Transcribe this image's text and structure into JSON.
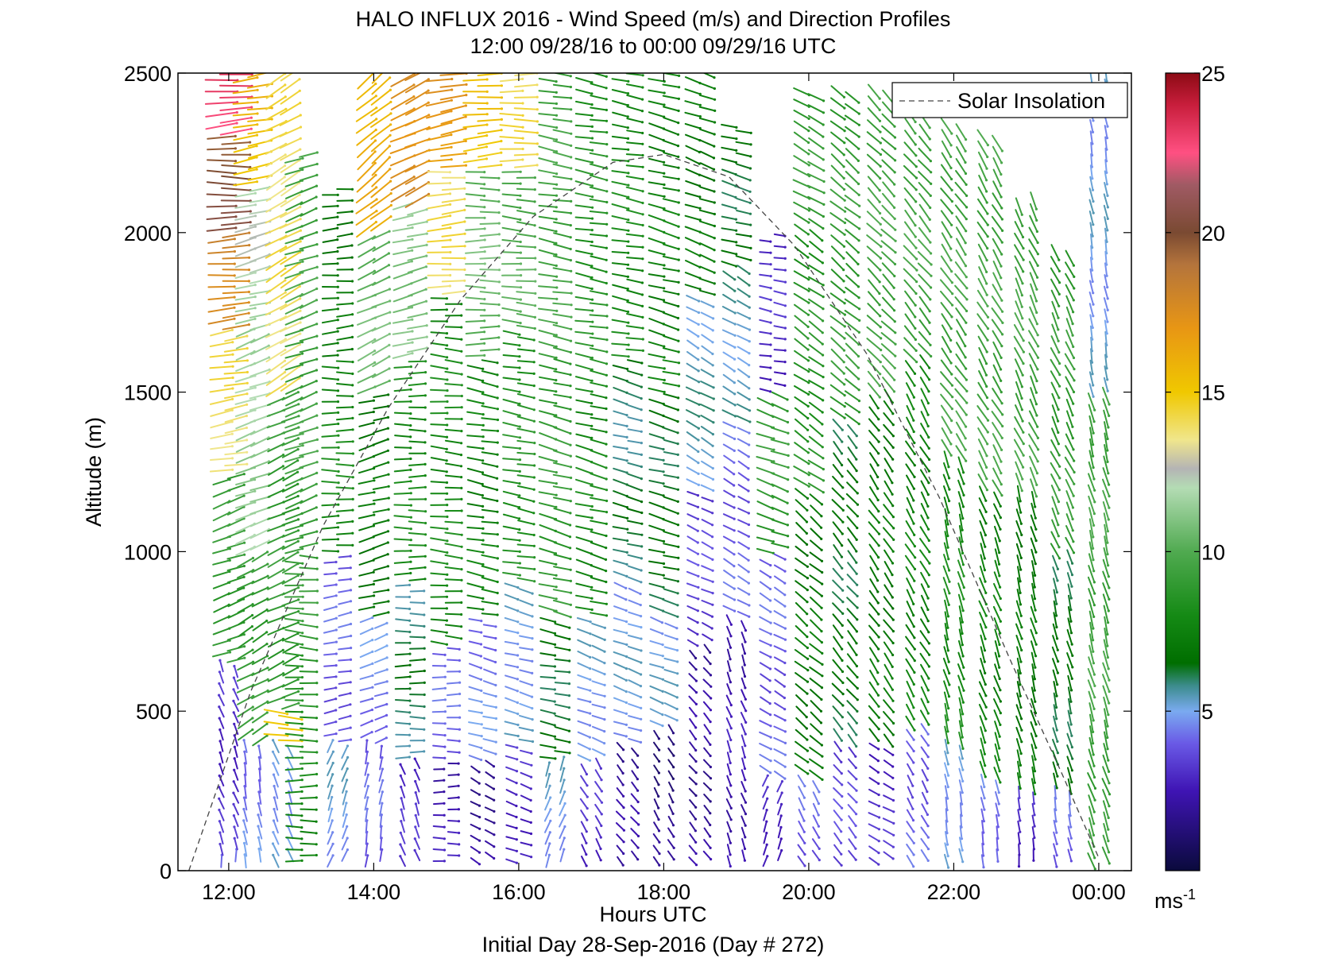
{
  "chart_data": {
    "type": "wind-barb-profile",
    "title": "HALO INFLUX 2016 - Wind Speed (m/s) and Direction Profiles",
    "subtitle": "12:00 09/28/16 to 00:00 09/29/16  UTC",
    "xlabel": "Hours UTC",
    "footer": "Initial Day 28-Sep-2016 (Day # 272)",
    "ylabel": "Altitude (m)",
    "xlim_hours": [
      11.3,
      24.45
    ],
    "ylim": [
      0,
      2500
    ],
    "x_ticks": [
      {
        "value": 12,
        "label": "12:00"
      },
      {
        "value": 14,
        "label": "14:00"
      },
      {
        "value": 16,
        "label": "16:00"
      },
      {
        "value": 18,
        "label": "18:00"
      },
      {
        "value": 20,
        "label": "20:00"
      },
      {
        "value": 22,
        "label": "22:00"
      },
      {
        "value": 24,
        "label": "00:00"
      }
    ],
    "y_ticks": [
      0,
      500,
      1000,
      1500,
      2000,
      2500
    ],
    "legend": {
      "entries": [
        "Solar Insolation"
      ],
      "placement": "top-right"
    },
    "colorbar": {
      "min": 0,
      "max": 25,
      "ticks": [
        5,
        10,
        15,
        20,
        25
      ],
      "unit_label": "ms",
      "unit_exponent": "-1",
      "stops": [
        {
          "v": 0,
          "c": "#0a0a3c"
        },
        {
          "v": 2.5,
          "c": "#3f14b4"
        },
        {
          "v": 4,
          "c": "#6a5ae6"
        },
        {
          "v": 5,
          "c": "#7aaaf0"
        },
        {
          "v": 5.8,
          "c": "#3c8c8c"
        },
        {
          "v": 6.5,
          "c": "#006e00"
        },
        {
          "v": 8,
          "c": "#158a15"
        },
        {
          "v": 10,
          "c": "#50aa50"
        },
        {
          "v": 12,
          "c": "#b4dcb4"
        },
        {
          "v": 12.6,
          "c": "#b4b4b4"
        },
        {
          "v": 13.5,
          "c": "#f0e68c"
        },
        {
          "v": 15,
          "c": "#f0c800"
        },
        {
          "v": 17,
          "c": "#e89614"
        },
        {
          "v": 19,
          "c": "#b4743c"
        },
        {
          "v": 20,
          "c": "#7a4a32"
        },
        {
          "v": 21.5,
          "c": "#a05a64"
        },
        {
          "v": 22.5,
          "c": "#ff5082"
        },
        {
          "v": 24,
          "c": "#c81e3c"
        },
        {
          "v": 25,
          "c": "#8c0a14"
        }
      ]
    },
    "solar_insolation": {
      "style": "dashed",
      "points": [
        [
          11.45,
          0
        ],
        [
          12.3,
          560
        ],
        [
          13.3,
          1080
        ],
        [
          14.2,
          1450
        ],
        [
          15.2,
          1790
        ],
        [
          16.2,
          2050
        ],
        [
          17.3,
          2220
        ],
        [
          18.0,
          2245
        ],
        [
          18.9,
          2175
        ],
        [
          19.8,
          1960
        ],
        [
          20.8,
          1620
        ],
        [
          21.8,
          1170
        ],
        [
          22.8,
          650
        ],
        [
          23.5,
          300
        ],
        [
          24.0,
          40
        ]
      ]
    },
    "profiles": [
      {
        "time": 12.0,
        "top": 2500,
        "segments": [
          [
            0,
            50,
            4.0,
            180
          ],
          [
            50,
            650,
            3.0,
            160
          ],
          [
            650,
            1250,
            9.0,
            250
          ],
          [
            1250,
            1700,
            14.0,
            260
          ],
          [
            1700,
            2000,
            18.0,
            265
          ],
          [
            2000,
            2300,
            20.0,
            270
          ],
          [
            2300,
            2500,
            23.0,
            265
          ]
        ]
      },
      {
        "time": 12.33,
        "top": 2500,
        "segments": [
          [
            0,
            400,
            4.5,
            170
          ],
          [
            400,
            1000,
            9.0,
            240
          ],
          [
            1000,
            1700,
            11.5,
            250
          ],
          [
            1700,
            2150,
            12.0,
            255
          ],
          [
            2150,
            2500,
            15.5,
            260
          ]
        ]
      },
      {
        "time": 12.75,
        "top": 2500,
        "segments": [
          [
            0,
            400,
            5.0,
            160
          ],
          [
            400,
            500,
            14.5,
            275
          ],
          [
            500,
            1500,
            9.0,
            245
          ],
          [
            1500,
            2500,
            14.0,
            240
          ]
        ]
      },
      {
        "time": 13.0,
        "top": 2250,
        "segments": [
          [
            0,
            500,
            8.0,
            270
          ],
          [
            500,
            1000,
            9.0,
            275
          ],
          [
            1000,
            2250,
            9.5,
            250
          ]
        ]
      },
      {
        "time": 13.5,
        "top": 2150,
        "segments": [
          [
            0,
            400,
            5.0,
            200
          ],
          [
            400,
            1000,
            4.0,
            260
          ],
          [
            1000,
            1600,
            8.0,
            270
          ],
          [
            1600,
            2150,
            7.0,
            265
          ]
        ]
      },
      {
        "time": 14.0,
        "top": 2500,
        "segments": [
          [
            0,
            400,
            4.0,
            190
          ],
          [
            400,
            800,
            4.5,
            250
          ],
          [
            800,
            1500,
            7.0,
            255
          ],
          [
            1500,
            2000,
            10.5,
            245
          ],
          [
            2000,
            2500,
            16.0,
            230
          ]
        ]
      },
      {
        "time": 14.5,
        "top": 2500,
        "segments": [
          [
            0,
            350,
            3.0,
            160
          ],
          [
            350,
            900,
            6.0,
            270
          ],
          [
            900,
            1600,
            8.0,
            270
          ],
          [
            1600,
            2100,
            11.0,
            255
          ],
          [
            2100,
            2500,
            17.5,
            245
          ]
        ]
      },
      {
        "time": 15.0,
        "top": 2500,
        "segments": [
          [
            0,
            350,
            2.5,
            270
          ],
          [
            350,
            700,
            4.0,
            270
          ],
          [
            700,
            1800,
            8.0,
            275
          ],
          [
            1800,
            2200,
            14.0,
            265
          ],
          [
            2200,
            2500,
            17.0,
            260
          ]
        ]
      },
      {
        "time": 15.5,
        "top": 2500,
        "segments": [
          [
            0,
            350,
            2.0,
            300
          ],
          [
            350,
            800,
            4.5,
            285
          ],
          [
            800,
            1600,
            7.5,
            280
          ],
          [
            1600,
            2200,
            10.5,
            270
          ],
          [
            2200,
            2500,
            15.0,
            265
          ]
        ]
      },
      {
        "time": 16.0,
        "top": 2500,
        "segments": [
          [
            0,
            400,
            3.0,
            290
          ],
          [
            400,
            900,
            5.0,
            285
          ],
          [
            900,
            1700,
            8.5,
            280
          ],
          [
            1700,
            2200,
            10.0,
            275
          ],
          [
            2200,
            2500,
            14.0,
            270
          ]
        ]
      },
      {
        "time": 16.5,
        "top": 2500,
        "segments": [
          [
            0,
            350,
            5.0,
            200
          ],
          [
            350,
            800,
            6.5,
            280
          ],
          [
            800,
            1600,
            9.0,
            285
          ],
          [
            1600,
            2500,
            9.5,
            280
          ]
        ]
      },
      {
        "time": 17.0,
        "top": 2500,
        "segments": [
          [
            0,
            350,
            3.0,
            330
          ],
          [
            350,
            800,
            5.0,
            290
          ],
          [
            800,
            1500,
            8.0,
            285
          ],
          [
            1500,
            2500,
            8.5,
            280
          ]
        ]
      },
      {
        "time": 17.5,
        "top": 2500,
        "segments": [
          [
            0,
            400,
            2.0,
            320
          ],
          [
            400,
            900,
            5.0,
            290
          ],
          [
            900,
            1600,
            6.0,
            285
          ],
          [
            1600,
            2500,
            8.0,
            280
          ]
        ]
      },
      {
        "time": 18.0,
        "top": 2500,
        "segments": [
          [
            0,
            450,
            1.5,
            330
          ],
          [
            450,
            800,
            5.0,
            290
          ],
          [
            800,
            1500,
            6.5,
            285
          ],
          [
            1500,
            2500,
            7.5,
            285
          ]
        ]
      },
      {
        "time": 18.5,
        "top": 2500,
        "segments": [
          [
            0,
            700,
            2.0,
            320
          ],
          [
            700,
            1200,
            3.5,
            295
          ],
          [
            1200,
            1800,
            5.5,
            300
          ],
          [
            1800,
            2500,
            7.0,
            290
          ]
        ]
      },
      {
        "time": 19.0,
        "top": 2350,
        "segments": [
          [
            0,
            800,
            2.5,
            340
          ],
          [
            800,
            1400,
            4.0,
            300
          ],
          [
            1400,
            1900,
            5.5,
            300
          ],
          [
            1900,
            2350,
            6.5,
            285
          ]
        ]
      },
      {
        "time": 19.5,
        "top": 2000,
        "segments": [
          [
            0,
            300,
            3.0,
            200
          ],
          [
            300,
            1000,
            4.0,
            300
          ],
          [
            1000,
            1500,
            9.0,
            290
          ],
          [
            1500,
            2000,
            3.0,
            280
          ]
        ]
      },
      {
        "time": 20.0,
        "top": 2450,
        "segments": [
          [
            0,
            300,
            4.0,
            330
          ],
          [
            300,
            1200,
            7.0,
            310
          ],
          [
            1200,
            2000,
            8.5,
            305
          ],
          [
            2000,
            2450,
            9.0,
            300
          ]
        ]
      },
      {
        "time": 20.5,
        "top": 2450,
        "segments": [
          [
            0,
            400,
            3.5,
            320
          ],
          [
            400,
            1400,
            6.5,
            320
          ],
          [
            1400,
            2450,
            9.0,
            310
          ]
        ]
      },
      {
        "time": 21.0,
        "top": 2450,
        "segments": [
          [
            0,
            400,
            3.0,
            300
          ],
          [
            400,
            1500,
            7.0,
            325
          ],
          [
            1500,
            2450,
            9.5,
            315
          ]
        ]
      },
      {
        "time": 21.5,
        "top": 2400,
        "segments": [
          [
            0,
            450,
            4.0,
            330
          ],
          [
            450,
            1600,
            7.5,
            330
          ],
          [
            1600,
            2400,
            9.5,
            320
          ]
        ]
      },
      {
        "time": 22.0,
        "top": 2350,
        "segments": [
          [
            0,
            400,
            5.0,
            350
          ],
          [
            400,
            1300,
            8.0,
            345
          ],
          [
            1300,
            2350,
            9.5,
            325
          ]
        ]
      },
      {
        "time": 22.5,
        "top": 2300,
        "segments": [
          [
            0,
            300,
            4.5,
            350
          ],
          [
            300,
            1200,
            7.5,
            340
          ],
          [
            1200,
            2300,
            9.5,
            330
          ]
        ]
      },
      {
        "time": 23.0,
        "top": 2100,
        "segments": [
          [
            0,
            250,
            3.0,
            355
          ],
          [
            250,
            1200,
            7.0,
            345
          ],
          [
            1200,
            2100,
            9.5,
            335
          ]
        ]
      },
      {
        "time": 23.5,
        "top": 1950,
        "segments": [
          [
            0,
            250,
            4.0,
            350
          ],
          [
            250,
            1000,
            6.5,
            345
          ],
          [
            1000,
            1950,
            9.0,
            335
          ]
        ]
      },
      {
        "time": 24.0,
        "top": 2500,
        "segments": [
          [
            0,
            300,
            9.0,
            340
          ],
          [
            300,
            1500,
            9.5,
            345
          ],
          [
            1500,
            2500,
            5.0,
            350
          ]
        ]
      }
    ]
  }
}
